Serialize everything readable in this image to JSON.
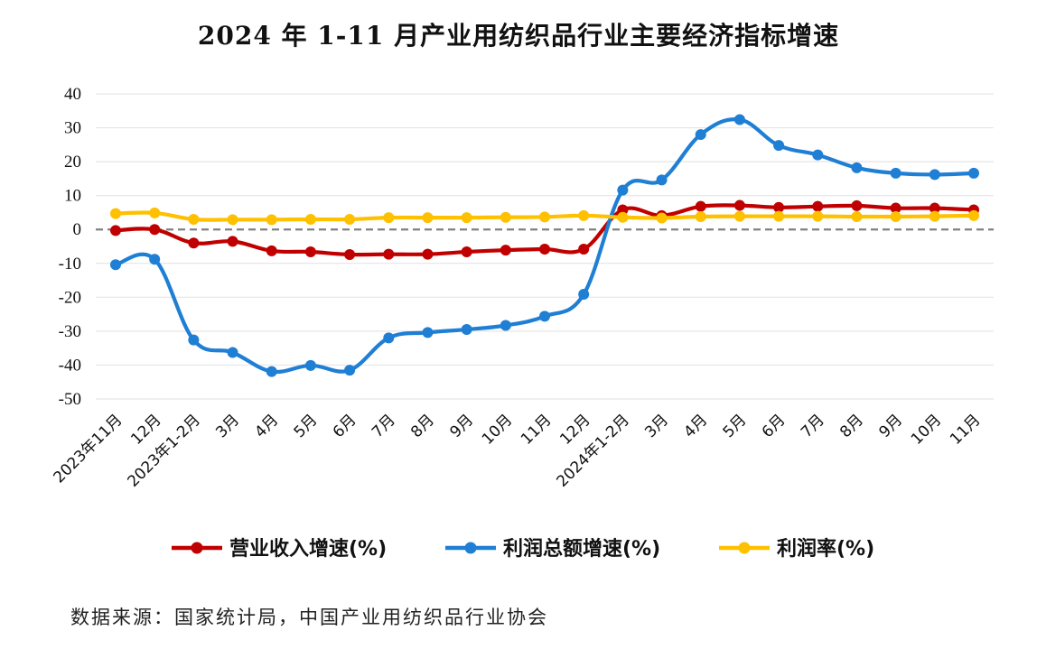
{
  "source_note": "数据来源：国家统计局，中国产业用纺织品行业协会",
  "colors": {
    "revenue": "#c00000",
    "profit_total": "#1f7fd4",
    "profit_rate": "#ffc000",
    "grid": "#e6e6e6",
    "zero_line": "#808080"
  },
  "chart_data": {
    "type": "line",
    "title": "2024 年 1-11 月产业用纺织品行业主要经济指标增速",
    "xlabel": "",
    "ylabel": "",
    "ylim": [
      -50,
      40
    ],
    "yticks": [
      40,
      30,
      20,
      10,
      0,
      -10,
      -20,
      -30,
      -40,
      -50
    ],
    "grid": true,
    "legend_position": "bottom",
    "categories": [
      "2023年11月",
      "12月",
      "2023年1-2月",
      "3月",
      "4月",
      "5月",
      "6月",
      "7月",
      "8月",
      "9月",
      "10月",
      "11月",
      "12月",
      "2024年1-2月",
      "3月",
      "4月",
      "5月",
      "6月",
      "7月",
      "8月",
      "9月",
      "10月",
      "11月"
    ],
    "series": [
      {
        "name": "营业收入增速(%)",
        "color": "#c00000",
        "values": [
          -0.3,
          0.0,
          -4.0,
          -3.5,
          -6.3,
          -6.6,
          -7.4,
          -7.3,
          -7.3,
          -6.6,
          -6.1,
          -5.8,
          -5.8,
          5.8,
          4.1,
          6.8,
          7.1,
          6.5,
          6.8,
          7.0,
          6.3,
          6.3,
          5.8
        ]
      },
      {
        "name": "利润总额增速(%)",
        "color": "#1f7fd4",
        "values": [
          -10.4,
          -8.8,
          -32.6,
          -36.3,
          -41.9,
          -40.1,
          -41.5,
          -32.0,
          -30.4,
          -29.5,
          -28.3,
          -25.6,
          -19.1,
          11.6,
          14.6,
          28.0,
          32.4,
          24.8,
          22.0,
          18.2,
          16.6,
          16.2,
          16.6
        ]
      },
      {
        "name": "利润率(%)",
        "color": "#ffc000",
        "values": [
          4.7,
          4.9,
          3.0,
          2.9,
          2.9,
          3.0,
          3.0,
          3.5,
          3.5,
          3.5,
          3.6,
          3.7,
          4.1,
          3.6,
          3.4,
          3.8,
          3.9,
          3.9,
          3.9,
          3.8,
          3.8,
          3.9,
          4.1
        ]
      }
    ]
  }
}
